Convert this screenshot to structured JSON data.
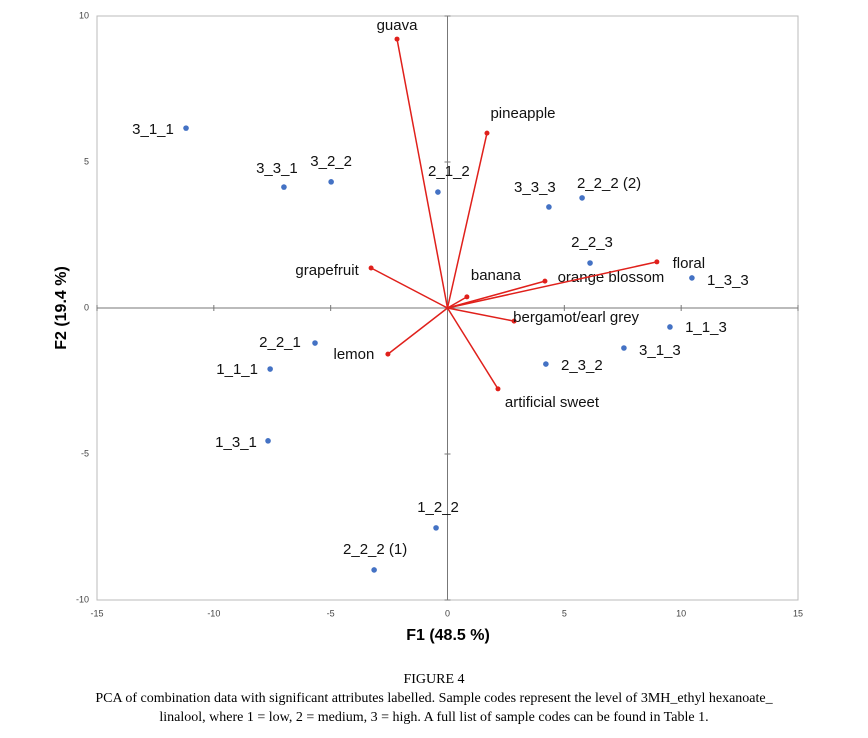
{
  "chart_data": {
    "type": "biplot",
    "x_label": "F1 (48.5 %)",
    "y_label": "F2 (19.4 %)",
    "xlim": [
      -15,
      15
    ],
    "ylim": [
      -10,
      10
    ],
    "xticks": [
      -15,
      -10,
      -5,
      0,
      5,
      10,
      15
    ],
    "yticks": [
      -10,
      -5,
      0,
      5,
      10
    ],
    "points": {
      "color": "#4472c4",
      "labels": [
        "3_1_1",
        "3_3_1",
        "3_2_2",
        "2_1_2",
        "3_3_3",
        "2_2_2 (2)",
        "2_2_3",
        "1_3_3",
        "1_1_3",
        "3_1_3",
        "2_3_2",
        "2_2_1",
        "1_1_1",
        "1_3_1",
        "1_2_2",
        "2_2_2 (1)"
      ],
      "x": [
        -11.19,
        -7.0,
        -4.98,
        -0.41,
        4.34,
        5.76,
        6.1,
        10.46,
        9.52,
        7.55,
        4.21,
        -5.67,
        -7.59,
        -7.68,
        -0.49,
        -3.14
      ],
      "y": [
        6.16,
        4.14,
        4.32,
        3.97,
        3.46,
        3.77,
        1.54,
        1.03,
        -0.65,
        -1.37,
        -1.92,
        -1.2,
        -2.09,
        -4.55,
        -7.53,
        -8.97
      ]
    },
    "vectors": {
      "color": "#e0201b",
      "labels": [
        "guava",
        "pineapple",
        "grapefruit",
        "banana",
        "orange blossom",
        "floral",
        "bergamot/earl grey",
        "lemon",
        "artificial sweet"
      ],
      "x": [
        -2.16,
        1.69,
        -3.27,
        0.83,
        4.17,
        8.96,
        2.85,
        -2.55,
        2.16
      ],
      "y": [
        9.21,
        5.99,
        1.37,
        0.38,
        0.92,
        1.58,
        -0.45,
        -1.58,
        -2.77
      ]
    }
  },
  "caption": {
    "figure": "FIGURE 4",
    "line1": "PCA of combination data with significant attributes labelled. Sample codes represent the level of 3MH_ethyl hexanoate_",
    "line2": "linalool, where 1 = low, 2 = medium, 3 = high. A full list of sample codes can be found in Table 1."
  }
}
